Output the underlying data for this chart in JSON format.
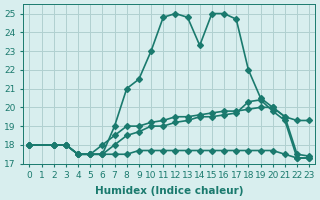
{
  "line1_x": [
    0,
    2,
    3,
    4,
    5,
    6,
    7,
    8,
    9,
    10,
    11,
    12,
    13,
    14,
    15,
    16,
    17,
    18,
    19,
    20,
    21,
    22,
    23
  ],
  "line1_y": [
    18.0,
    18.0,
    18.0,
    17.5,
    17.5,
    17.5,
    19.0,
    21.0,
    21.5,
    23.0,
    24.8,
    25.0,
    24.8,
    23.3,
    25.0,
    25.0,
    24.7,
    22.0,
    20.5,
    20.0,
    19.5,
    19.3,
    19.3
  ],
  "line2_x": [
    0,
    2,
    3,
    4,
    5,
    6,
    7,
    8,
    9,
    10,
    11,
    12,
    13,
    14,
    15,
    16,
    17,
    18,
    19,
    20,
    21,
    22,
    23
  ],
  "line2_y": [
    18.0,
    18.0,
    18.0,
    17.5,
    17.5,
    18.0,
    18.5,
    19.0,
    19.0,
    19.2,
    19.3,
    19.5,
    19.5,
    19.6,
    19.7,
    19.8,
    19.8,
    19.9,
    20.0,
    20.0,
    19.5,
    17.5,
    17.4
  ],
  "line3_x": [
    0,
    2,
    3,
    4,
    5,
    6,
    7,
    8,
    9,
    10,
    11,
    12,
    13,
    14,
    15,
    16,
    17,
    18,
    19,
    20,
    21,
    22,
    23
  ],
  "line3_y": [
    18.0,
    18.0,
    18.0,
    17.5,
    17.5,
    17.5,
    17.5,
    17.5,
    17.7,
    17.7,
    17.7,
    17.7,
    17.7,
    17.7,
    17.7,
    17.7,
    17.7,
    17.7,
    17.7,
    17.7,
    17.5,
    17.3,
    17.3
  ],
  "line4_x": [
    0,
    2,
    3,
    4,
    5,
    6,
    7,
    8,
    9,
    10,
    11,
    12,
    13,
    14,
    15,
    16,
    17,
    18,
    19,
    20,
    21,
    22,
    23
  ],
  "line4_y": [
    18.0,
    18.0,
    18.0,
    17.5,
    17.5,
    17.5,
    18.0,
    18.5,
    18.7,
    19.0,
    19.0,
    19.2,
    19.3,
    19.5,
    19.5,
    19.6,
    19.7,
    20.3,
    20.4,
    19.8,
    19.3,
    17.3,
    17.3
  ],
  "line_color": "#1a7a6e",
  "bg_color": "#d8eeee",
  "grid_color": "#b0d0d0",
  "xlabel": "Humidex (Indice chaleur)",
  "xlim": [
    -0.5,
    23.5
  ],
  "ylim": [
    17,
    25.5
  ],
  "xticks": [
    0,
    1,
    2,
    3,
    4,
    5,
    6,
    7,
    8,
    9,
    10,
    11,
    12,
    13,
    14,
    15,
    16,
    17,
    18,
    19,
    20,
    21,
    22,
    23
  ],
  "yticks": [
    17,
    18,
    19,
    20,
    21,
    22,
    23,
    24,
    25
  ],
  "marker": "D",
  "marker_size": 3,
  "linewidth": 1.2,
  "tick_fontsize": 6.5,
  "label_fontsize": 7.5
}
